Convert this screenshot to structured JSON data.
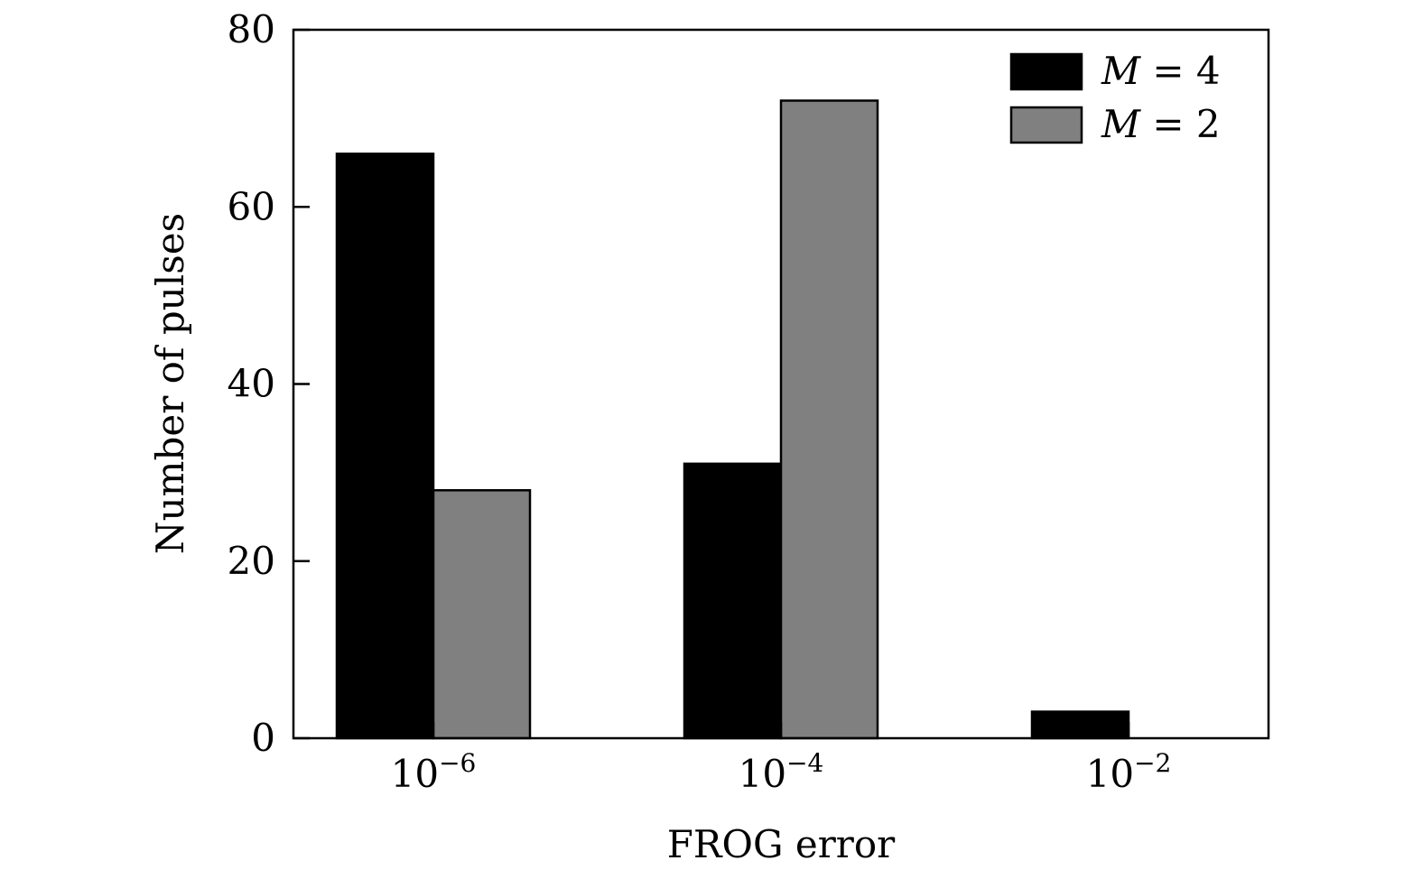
{
  "chart_data": {
    "type": "bar",
    "categories": [
      "10",
      "10",
      "10"
    ],
    "category_exponents": [
      "−6",
      "−4",
      "−2"
    ],
    "series": [
      {
        "name": "M = 4",
        "legend_var": "M",
        "legend_rest": " = 4",
        "color": "#000000",
        "values": [
          66,
          31,
          3
        ]
      },
      {
        "name": "M = 2",
        "legend_var": "M",
        "legend_rest": " = 2",
        "color": "#808080",
        "values": [
          28,
          72,
          0
        ]
      }
    ],
    "xlabel": "FROG error",
    "ylabel": "Number of pulses",
    "ylim": [
      0,
      80
    ],
    "yticks": [
      0,
      20,
      40,
      60,
      80
    ],
    "ytick_labels": [
      "0",
      "20",
      "40",
      "60",
      "80"
    ],
    "grid": false,
    "legend_position": "top-right"
  }
}
